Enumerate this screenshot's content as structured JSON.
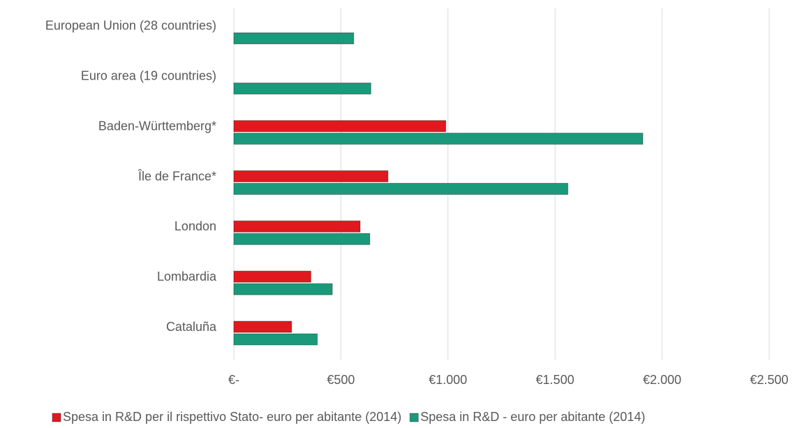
{
  "chart_data": {
    "type": "bar",
    "orientation": "horizontal",
    "categories": [
      "European Union (28 countries)",
      "Euro area (19 countries)",
      "Baden-Württemberg*",
      "Île de France*",
      "London",
      "Lombardia",
      "Cataluña"
    ],
    "series": [
      {
        "name": "Spesa in R&D per il rispettivo Stato- euro per abitante (2014)",
        "color": "#e0191f",
        "values": [
          null,
          null,
          990,
          720,
          590,
          360,
          270
        ]
      },
      {
        "name": "Spesa in R&D - euro per abitante (2014)",
        "color": "#1a9a7a",
        "values": [
          560,
          640,
          1910,
          1560,
          635,
          460,
          390
        ]
      }
    ],
    "xlim": [
      0,
      2500
    ],
    "xticks": [
      {
        "value": 0,
        "label": "€-"
      },
      {
        "value": 500,
        "label": "€500"
      },
      {
        "value": 1000,
        "label": "€1.000"
      },
      {
        "value": 1500,
        "label": "€1.500"
      },
      {
        "value": 2000,
        "label": "€2.000"
      },
      {
        "value": 2500,
        "label": "€2.500"
      }
    ],
    "grid": true,
    "legend": "bottom"
  }
}
